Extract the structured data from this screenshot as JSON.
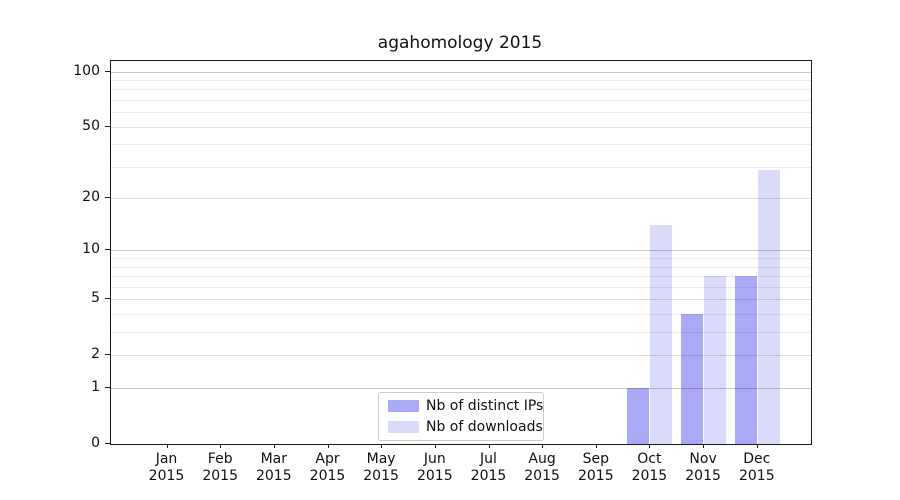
{
  "chart_data": {
    "type": "bar",
    "title": "agahomology 2015",
    "categories": [
      {
        "month": "Jan",
        "year": "2015"
      },
      {
        "month": "Feb",
        "year": "2015"
      },
      {
        "month": "Mar",
        "year": "2015"
      },
      {
        "month": "Apr",
        "year": "2015"
      },
      {
        "month": "May",
        "year": "2015"
      },
      {
        "month": "Jun",
        "year": "2015"
      },
      {
        "month": "Jul",
        "year": "2015"
      },
      {
        "month": "Aug",
        "year": "2015"
      },
      {
        "month": "Sep",
        "year": "2015"
      },
      {
        "month": "Oct",
        "year": "2015"
      },
      {
        "month": "Nov",
        "year": "2015"
      },
      {
        "month": "Dec",
        "year": "2015"
      }
    ],
    "series": [
      {
        "name": "Nb of distinct IPs",
        "color": "#a9a9f8",
        "values": [
          0,
          0,
          0,
          0,
          0,
          0,
          0,
          0,
          0,
          1,
          4,
          7
        ]
      },
      {
        "name": "Nb of downloads",
        "color": "#dadaf9",
        "values": [
          0,
          0,
          0,
          0,
          0,
          0,
          0,
          0,
          0,
          14,
          7,
          29
        ]
      }
    ],
    "xlabel": "",
    "ylabel": "",
    "yscale": "log1p",
    "ylim": [
      0,
      114
    ],
    "y_ticks": [
      0,
      1,
      2,
      5,
      10,
      20,
      50,
      100
    ],
    "grid": true,
    "legend_position": "lower center"
  }
}
